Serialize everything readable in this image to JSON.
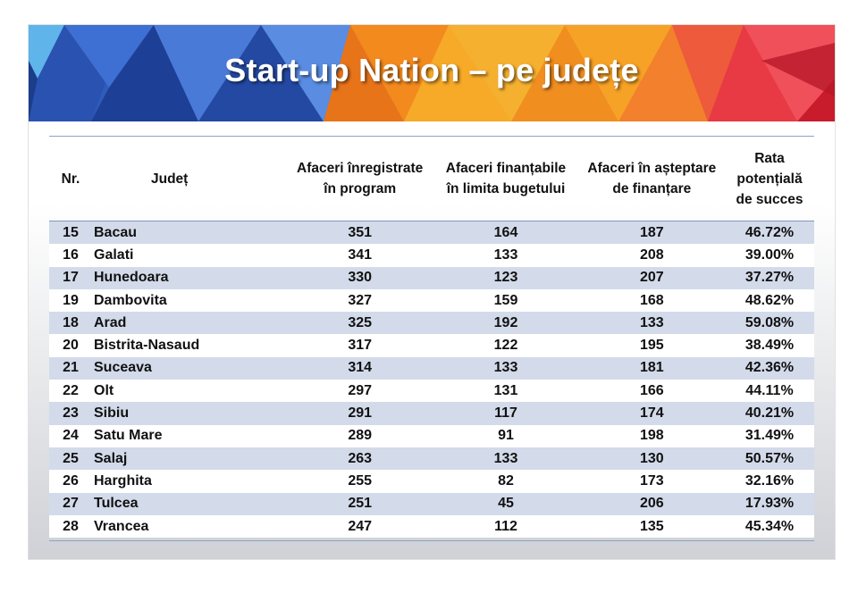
{
  "title": "Start-up Nation – pe județe",
  "columns": {
    "nr": "Nr.",
    "judet": "Județ",
    "inregistrate_1": "Afaceri înregistrate",
    "inregistrate_2": "în program",
    "finantabile_1": "Afaceri finanțabile",
    "finantabile_2": "în limita bugetului",
    "asteptare_1": "Afaceri în așteptare",
    "asteptare_2": "de finanțare",
    "rata_1": "Rata",
    "rata_2": "potențială",
    "rata_3": "de succes"
  },
  "rows": [
    {
      "nr": "15",
      "judet": "Bacau",
      "inregistrate": "351",
      "finantabile": "164",
      "asteptare": "187",
      "rata": "46.72%"
    },
    {
      "nr": "16",
      "judet": "Galati",
      "inregistrate": "341",
      "finantabile": "133",
      "asteptare": "208",
      "rata": "39.00%"
    },
    {
      "nr": "17",
      "judet": "Hunedoara",
      "inregistrate": "330",
      "finantabile": "123",
      "asteptare": "207",
      "rata": "37.27%"
    },
    {
      "nr": "19",
      "judet": "Dambovita",
      "inregistrate": "327",
      "finantabile": "159",
      "asteptare": "168",
      "rata": "48.62%"
    },
    {
      "nr": "18",
      "judet": "Arad",
      "inregistrate": "325",
      "finantabile": "192",
      "asteptare": "133",
      "rata": "59.08%"
    },
    {
      "nr": "20",
      "judet": "Bistrita-Nasaud",
      "inregistrate": "317",
      "finantabile": "122",
      "asteptare": "195",
      "rata": "38.49%"
    },
    {
      "nr": "21",
      "judet": "Suceava",
      "inregistrate": "314",
      "finantabile": "133",
      "asteptare": "181",
      "rata": "42.36%"
    },
    {
      "nr": "22",
      "judet": "Olt",
      "inregistrate": "297",
      "finantabile": "131",
      "asteptare": "166",
      "rata": "44.11%"
    },
    {
      "nr": "23",
      "judet": "Sibiu",
      "inregistrate": "291",
      "finantabile": "117",
      "asteptare": "174",
      "rata": "40.21%"
    },
    {
      "nr": "24",
      "judet": "Satu Mare",
      "inregistrate": "289",
      "finantabile": "91",
      "asteptare": "198",
      "rata": "31.49%"
    },
    {
      "nr": "25",
      "judet": "Salaj",
      "inregistrate": "263",
      "finantabile": "133",
      "asteptare": "130",
      "rata": "50.57%"
    },
    {
      "nr": "26",
      "judet": "Harghita",
      "inregistrate": "255",
      "finantabile": "82",
      "asteptare": "173",
      "rata": "32.16%"
    },
    {
      "nr": "27",
      "judet": "Tulcea",
      "inregistrate": "251",
      "finantabile": "45",
      "asteptare": "206",
      "rata": "17.93%"
    },
    {
      "nr": "28",
      "judet": "Vrancea",
      "inregistrate": "247",
      "finantabile": "112",
      "asteptare": "135",
      "rata": "45.34%"
    }
  ],
  "colors": {
    "stripe": "#d3dbea",
    "rule": "#8da4c7",
    "banner_blue": "#2a4fa8",
    "banner_orange": "#f08a1c",
    "banner_red": "#e33240"
  }
}
